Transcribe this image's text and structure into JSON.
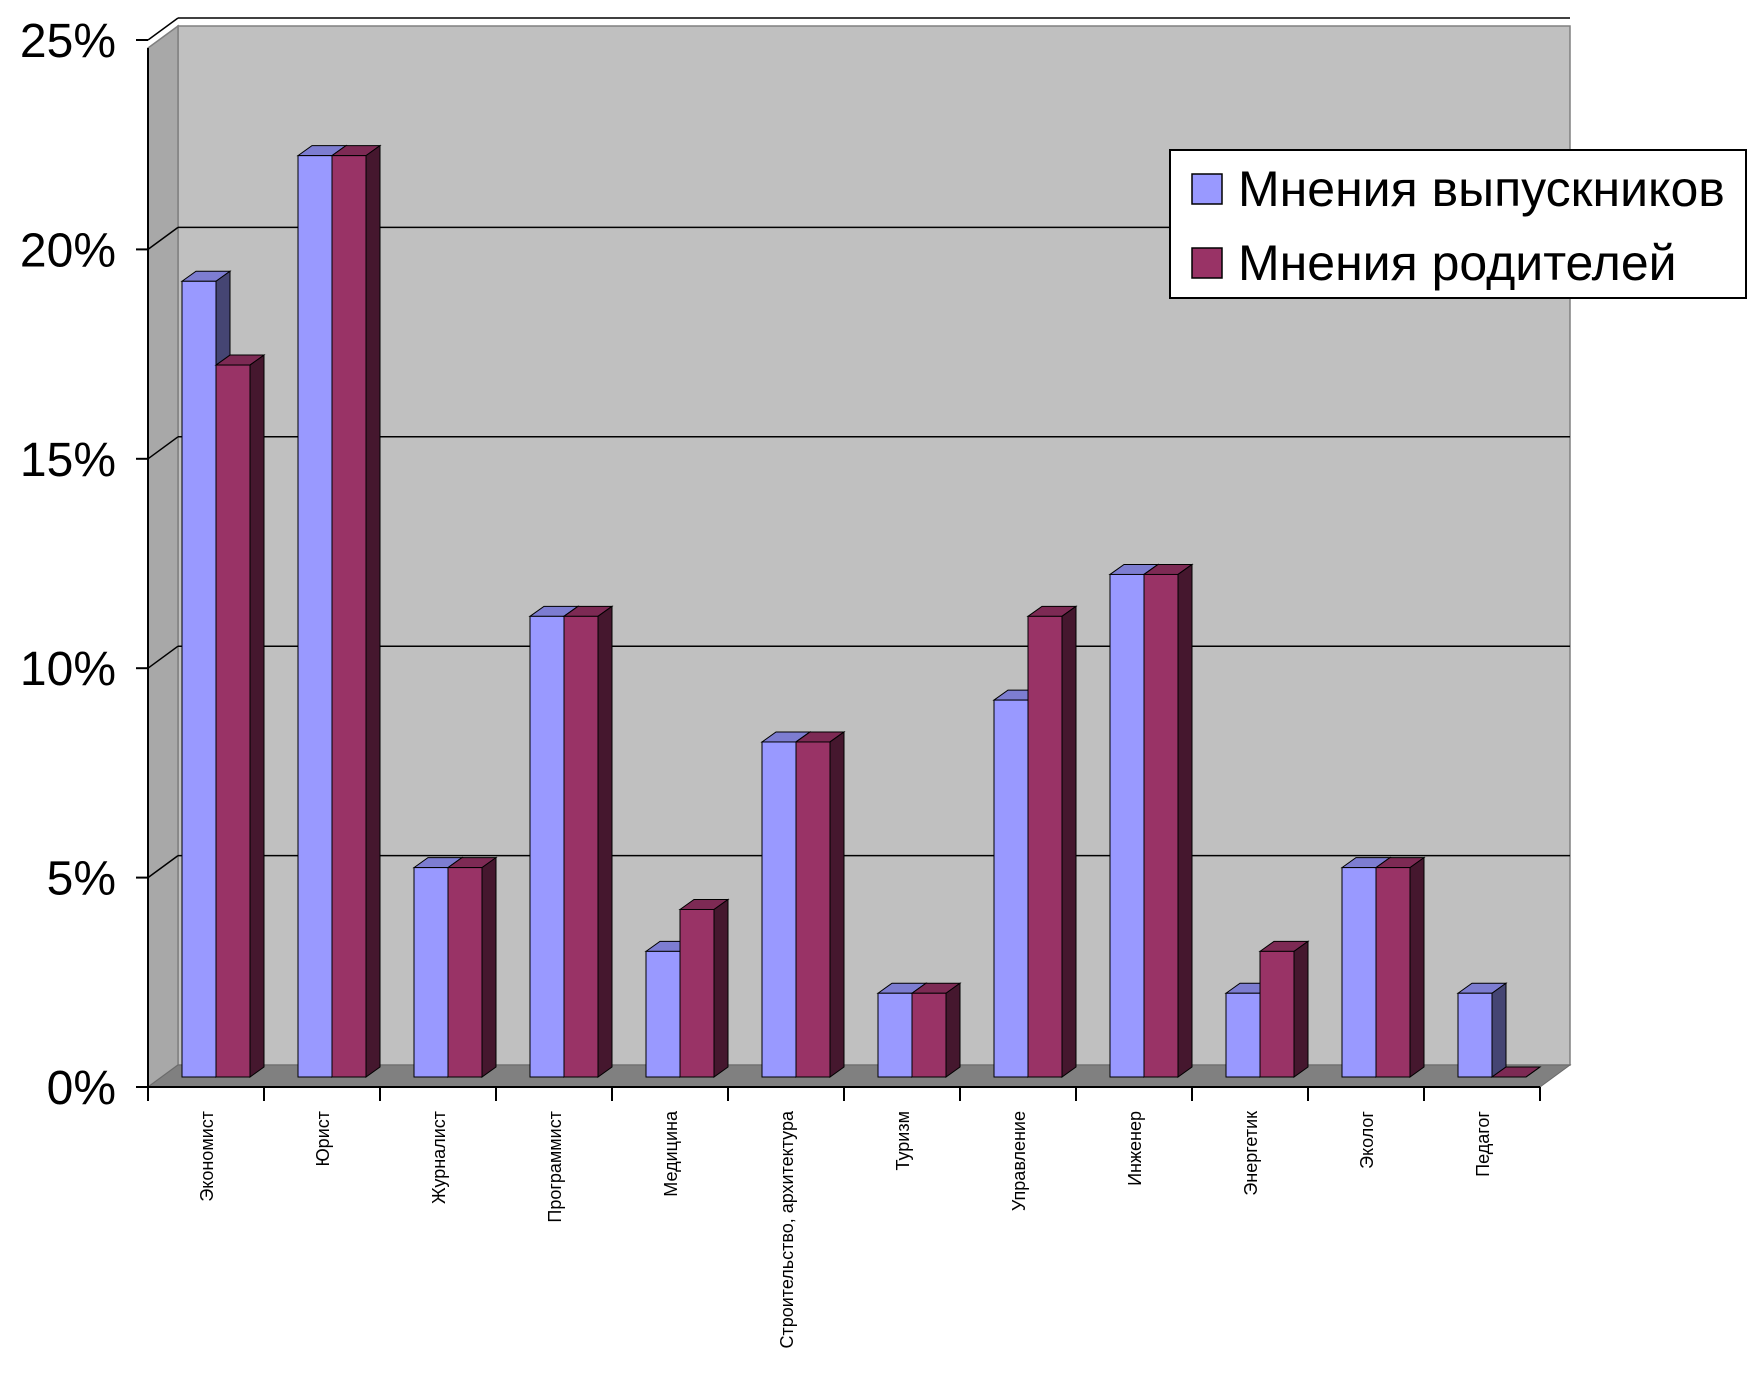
{
  "chart_data": {
    "type": "bar",
    "title": "",
    "xlabel": "",
    "ylabel": "",
    "ylim": [
      0,
      25
    ],
    "y_tick_values": [
      0,
      5,
      10,
      15,
      20,
      25
    ],
    "y_tick_labels": [
      "0%",
      "5%",
      "10%",
      "15%",
      "20%",
      "25%"
    ],
    "grid": "horizontal",
    "legend_position": "top-right",
    "categories": [
      "Экономист",
      "Юрист",
      "Журналист",
      "Программист",
      "Медицина",
      "Строительство, архитектура",
      "Туризм",
      "Управление",
      "Инженер",
      "Энергетик",
      "Эколог",
      "Педагог"
    ],
    "series": [
      {
        "name": "Мнения выпускников",
        "color": "#9999ff",
        "values": [
          19,
          22,
          5,
          11,
          3,
          8,
          2,
          9,
          12,
          2,
          5,
          2
        ]
      },
      {
        "name": "Мнения родителей",
        "color": "#993366",
        "values": [
          17,
          22,
          5,
          11,
          4,
          8,
          2,
          11,
          12,
          3,
          5,
          0
        ]
      }
    ]
  }
}
